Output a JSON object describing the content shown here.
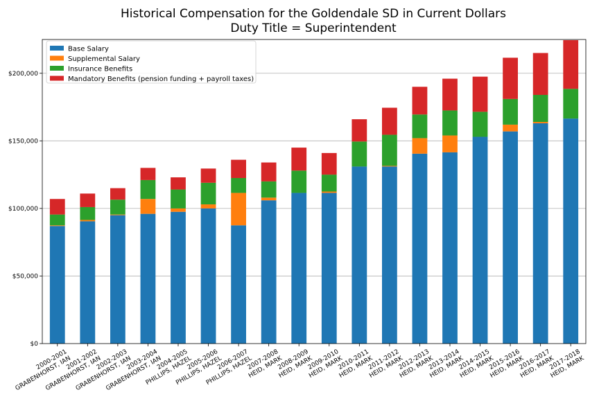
{
  "chart_data": {
    "type": "bar",
    "stacked": true,
    "title": [
      "Historical Compensation for the Goldendale SD in Current Dollars",
      "Duty Title = Superintendent"
    ],
    "categories": [
      [
        "2000-2001",
        "GRABENHORST, IAN"
      ],
      [
        "2001-2002",
        "GRABENHORST, IAN"
      ],
      [
        "2002-2003",
        "GRABENHORST, IAN"
      ],
      [
        "2003-2004",
        "GRABENHORST, IAN"
      ],
      [
        "2004-2005",
        "PHILLIPS, HAZEL"
      ],
      [
        "2005-2006",
        "PHILLIPS, HAZEL"
      ],
      [
        "2006-2007",
        "PHILLIPS, HAZEL"
      ],
      [
        "2007-2008",
        "HEID, MARK"
      ],
      [
        "2008-2009",
        "HEID, MARK"
      ],
      [
        "2009-2010",
        "HEID, MARK"
      ],
      [
        "2010-2011",
        "HEID, MARK"
      ],
      [
        "2011-2012",
        "HEID, MARK"
      ],
      [
        "2012-2013",
        "HEID, MARK"
      ],
      [
        "2013-2014",
        "HEID, MARK"
      ],
      [
        "2014-2015",
        "HEID, MARK"
      ],
      [
        "2015-2016",
        "HEID, MARK"
      ],
      [
        "2016-2017",
        "HEID, MARK"
      ],
      [
        "2017-2018",
        "HEID, MARK"
      ]
    ],
    "series": [
      {
        "name": "Base Salary",
        "color": "#1f77b4",
        "values": [
          87000,
          90500,
          95000,
          96000,
          97500,
          100000,
          87500,
          106000,
          111500,
          111500,
          131000,
          131000,
          140500,
          141500,
          153000,
          157000,
          163000,
          166500
        ]
      },
      {
        "name": "Supplemental Salary",
        "color": "#ff7f0e",
        "values": [
          500,
          1000,
          500,
          11000,
          2500,
          3000,
          24000,
          2000,
          0,
          1000,
          0,
          500,
          11500,
          12500,
          0,
          5000,
          1000,
          0
        ]
      },
      {
        "name": "Insurance Benefits",
        "color": "#2ca02c",
        "values": [
          8000,
          9500,
          11000,
          14000,
          14000,
          16000,
          11000,
          12000,
          16500,
          12500,
          18500,
          23000,
          17500,
          18500,
          18500,
          19000,
          20000,
          22000
        ]
      },
      {
        "name": "Mandatory Benefits (pension funding + payroll taxes)",
        "color": "#d62728",
        "values": [
          11500,
          10000,
          8500,
          9000,
          9000,
          10500,
          13500,
          14000,
          17000,
          16000,
          16500,
          20000,
          20500,
          23500,
          26000,
          30500,
          31000,
          36000
        ]
      }
    ],
    "yticks": [
      0,
      50000,
      100000,
      150000,
      200000
    ],
    "ytick_labels": [
      "$0",
      "$50,000",
      "$100,000",
      "$150,000",
      "$200,000"
    ],
    "ylim": [
      0,
      225000
    ],
    "grid": "y",
    "legend": "top-left"
  }
}
